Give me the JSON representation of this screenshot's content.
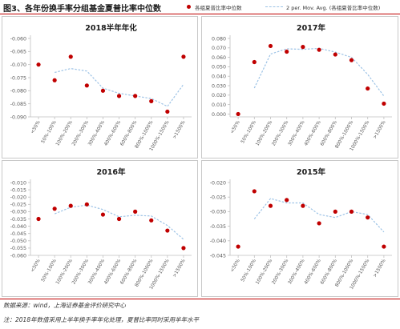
{
  "header": {
    "title": "图3、各年份换手率分组基金夏普比率中位数",
    "legend": {
      "points_label": "各组夏普比率中位数",
      "line_label": "2 per. Mov. Avg. (各组夏普比率中位数)"
    }
  },
  "colors": {
    "point": "#c00000",
    "avg_line": "#9dc3e6",
    "axis": "#bfbfbf",
    "text": "#595959",
    "rule": "#c00000"
  },
  "footer": {
    "source": "数据来源：wind，上海证券基金评价研究中心",
    "note": "注：2018年数值采用上半年换手率年化处理，夏普比率同时采用半年水平"
  },
  "chart_data": [
    {
      "type": "scatter",
      "title": "2018半年年化",
      "categories": [
        "<50%",
        "50%-100%",
        "100%-200%",
        "200%-300%",
        "300%-400%",
        "400%-600%",
        "600%-800%",
        "800%-1000%",
        "1000%-1500%",
        ">1500%"
      ],
      "values": [
        -0.07,
        -0.076,
        -0.067,
        -0.078,
        -0.08,
        -0.082,
        -0.082,
        -0.084,
        -0.088,
        -0.067
      ],
      "moving_avg": [
        null,
        -0.073,
        -0.0715,
        -0.0725,
        -0.079,
        -0.081,
        -0.082,
        -0.083,
        -0.086,
        -0.0775
      ],
      "y_ticks": [
        -0.06,
        -0.065,
        -0.07,
        -0.075,
        -0.08,
        -0.085,
        -0.09
      ],
      "y_tick_labels": [
        "-0.060",
        "-0.065",
        "-0.070",
        "-0.075",
        "-0.080",
        "-0.085",
        "-0.090"
      ],
      "ylim": [
        -0.09,
        -0.06
      ]
    },
    {
      "type": "scatter",
      "title": "2017年",
      "categories": [
        "<50%",
        "50%-100%",
        "100%-200%",
        "200%-300%",
        "300%-400%",
        "400%-600%",
        "600%-800%",
        "800%-1000%",
        "1000%-1500%",
        ">1500%"
      ],
      "values": [
        0.0,
        0.055,
        0.072,
        0.066,
        0.071,
        0.068,
        0.063,
        0.057,
        0.027,
        0.011
      ],
      "moving_avg": [
        null,
        0.0275,
        0.0635,
        0.069,
        0.0685,
        0.0695,
        0.0655,
        0.06,
        0.042,
        0.019
      ],
      "y_ticks": [
        0.0,
        0.01,
        0.02,
        0.03,
        0.04,
        0.05,
        0.06,
        0.07,
        0.08
      ],
      "y_tick_labels": [
        "0.000",
        "0.010",
        "0.020",
        "0.030",
        "0.040",
        "0.050",
        "0.060",
        "0.070",
        "0.080"
      ],
      "ylim": [
        -0.003,
        0.08
      ]
    },
    {
      "type": "scatter",
      "title": "2016年",
      "categories": [
        "<50%",
        "50%-100%",
        "100%-200%",
        "200%-300%",
        "300%-400%",
        "400%-600%",
        "600%-800%",
        "800%-1000%",
        "1000%-1500%",
        ">1500%"
      ],
      "values": [
        -0.035,
        -0.028,
        -0.026,
        -0.025,
        -0.032,
        -0.035,
        -0.03,
        -0.036,
        -0.043,
        -0.055
      ],
      "moving_avg": [
        null,
        -0.0315,
        -0.027,
        -0.0255,
        -0.0285,
        -0.0335,
        -0.0325,
        -0.033,
        -0.0395,
        -0.049
      ],
      "y_ticks": [
        -0.01,
        -0.015,
        -0.02,
        -0.025,
        -0.03,
        -0.035,
        -0.04,
        -0.045,
        -0.05,
        -0.055,
        -0.06
      ],
      "y_tick_labels": [
        "-0.010",
        "-0.015",
        "-0.020",
        "-0.025",
        "-0.030",
        "-0.035",
        "-0.040",
        "-0.045",
        "-0.050",
        "-0.055",
        "-0.060"
      ],
      "ylim": [
        -0.06,
        -0.01
      ]
    },
    {
      "type": "scatter",
      "title": "2015年",
      "categories": [
        "<50%",
        "50%-100%",
        "100%-200%",
        "200%-300%",
        "300%-400%",
        "400%-600%",
        "600%-800%",
        "800%-1000%",
        "1000%-1500%",
        ">1500%"
      ],
      "values": [
        -0.042,
        -0.023,
        -0.028,
        -0.026,
        -0.028,
        -0.034,
        -0.03,
        -0.03,
        -0.032,
        -0.042
      ],
      "moving_avg": [
        null,
        -0.0325,
        -0.0255,
        -0.027,
        -0.027,
        -0.031,
        -0.032,
        -0.03,
        -0.031,
        -0.037
      ],
      "y_ticks": [
        -0.02,
        -0.025,
        -0.03,
        -0.035,
        -0.04,
        -0.045
      ],
      "y_tick_labels": [
        "-0.020",
        "-0.025",
        "-0.030",
        "-0.035",
        "-0.040",
        "-0.045"
      ],
      "ylim": [
        -0.045,
        -0.02
      ]
    }
  ]
}
